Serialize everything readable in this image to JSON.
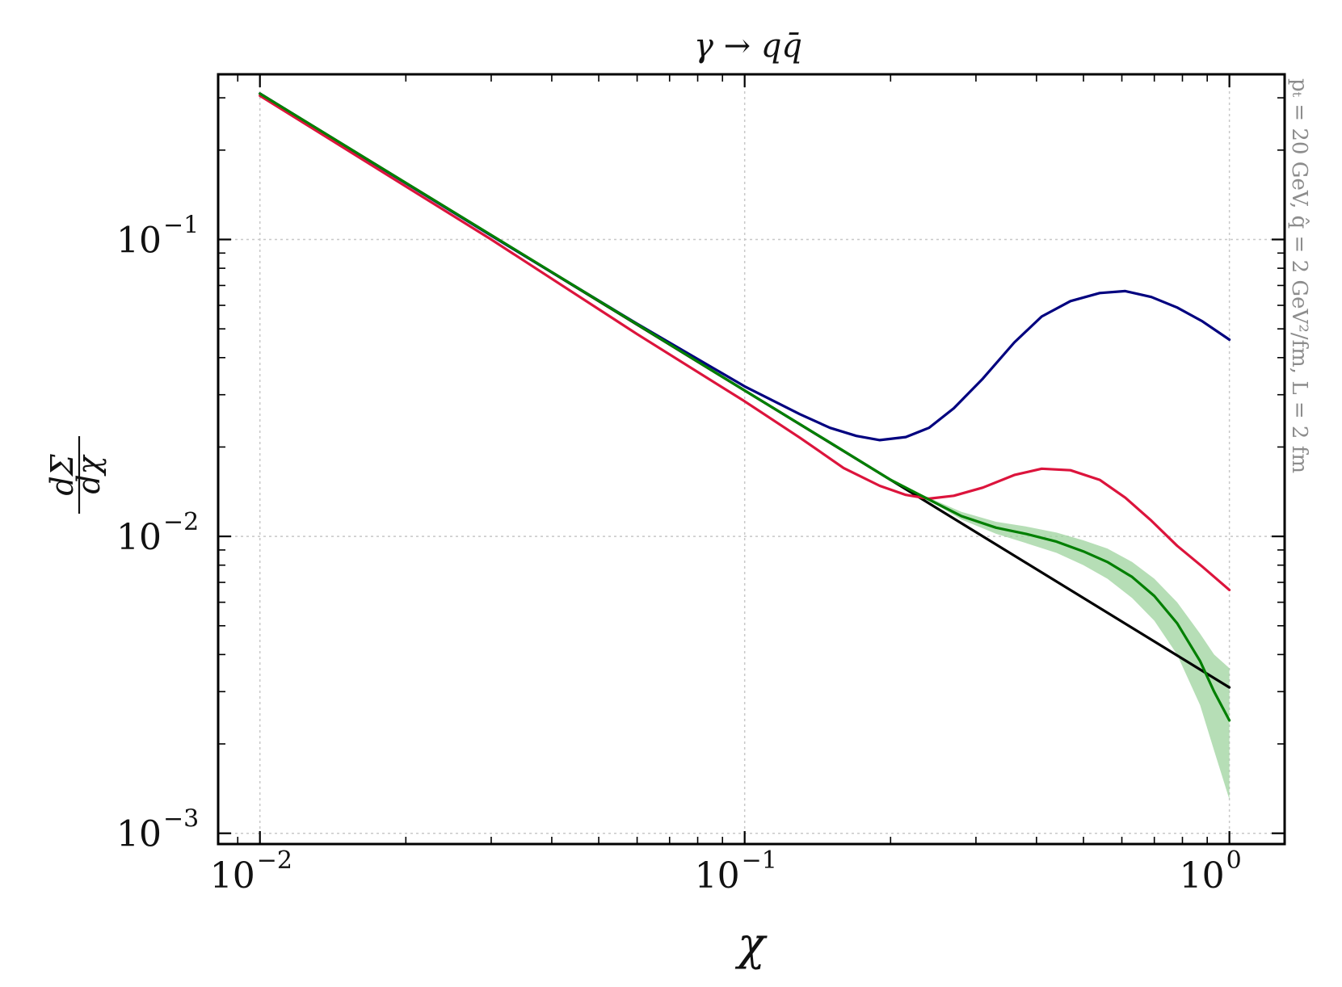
{
  "chart_data": {
    "type": "line",
    "title": "γ → qq̄",
    "xlabel": "χ",
    "ylabel_numerator": "dΣ",
    "ylabel_denominator": "dχ",
    "side_note": "pₜ = 20 GeV, q̂ = 2 GeV²/fm, L = 2 fm",
    "x_scale": "log",
    "y_scale": "log",
    "xlim": [
      0.0082,
      1.3
    ],
    "ylim": [
      0.00092,
      0.36
    ],
    "grid": true,
    "x_ticks": [
      {
        "value": 0.01,
        "base": "10",
        "exp": "−2"
      },
      {
        "value": 0.1,
        "base": "10",
        "exp": "−1"
      },
      {
        "value": 1,
        "base": "10",
        "exp": "0"
      }
    ],
    "y_ticks": [
      {
        "value": 0.001,
        "base": "10",
        "exp": "−3"
      },
      {
        "value": 0.01,
        "base": "10",
        "exp": "−2"
      },
      {
        "value": 0.1,
        "base": "10",
        "exp": "−1"
      }
    ],
    "series": [
      {
        "color": "#000000",
        "x": [
          0.01,
          0.1,
          0.2,
          1.0
        ],
        "y": [
          0.31,
          0.031,
          0.0155,
          0.0031
        ]
      },
      {
        "color": "#00007f",
        "x": [
          0.01,
          0.03,
          0.06,
          0.1,
          0.13,
          0.15,
          0.17,
          0.19,
          0.215,
          0.24,
          0.27,
          0.31,
          0.36,
          0.41,
          0.47,
          0.54,
          0.61,
          0.69,
          0.78,
          0.88,
          1.0
        ],
        "y": [
          0.31,
          0.103,
          0.052,
          0.032,
          0.0258,
          0.0232,
          0.0218,
          0.0211,
          0.0216,
          0.0232,
          0.027,
          0.034,
          0.045,
          0.055,
          0.062,
          0.066,
          0.067,
          0.064,
          0.059,
          0.053,
          0.046
        ]
      },
      {
        "color": "#dc143c",
        "x": [
          0.01,
          0.03,
          0.06,
          0.1,
          0.13,
          0.16,
          0.19,
          0.215,
          0.24,
          0.27,
          0.31,
          0.36,
          0.41,
          0.47,
          0.54,
          0.61,
          0.69,
          0.78,
          0.88,
          1.0
        ],
        "y": [
          0.305,
          0.1,
          0.048,
          0.0285,
          0.0215,
          0.017,
          0.0148,
          0.0138,
          0.0134,
          0.0137,
          0.0146,
          0.0161,
          0.0169,
          0.0167,
          0.0155,
          0.0135,
          0.0113,
          0.0093,
          0.0079,
          0.0066
        ]
      },
      {
        "color": "#007f00",
        "x": [
          0.01,
          0.03,
          0.06,
          0.1,
          0.15,
          0.2,
          0.24,
          0.28,
          0.33,
          0.38,
          0.44,
          0.5,
          0.56,
          0.63,
          0.7,
          0.78,
          0.87,
          0.93,
          1.0
        ],
        "y": [
          0.31,
          0.1035,
          0.0518,
          0.031,
          0.0207,
          0.0155,
          0.0133,
          0.0117,
          0.0107,
          0.0102,
          0.0096,
          0.0089,
          0.0082,
          0.0073,
          0.0063,
          0.0051,
          0.0038,
          0.003,
          0.0024
        ],
        "band_lower": [
          0.31,
          0.1035,
          0.0518,
          0.031,
          0.0207,
          0.0155,
          0.0132,
          0.0114,
          0.0102,
          0.0095,
          0.0088,
          0.008,
          0.0072,
          0.0062,
          0.0052,
          0.004,
          0.0027,
          0.0019,
          0.0013
        ],
        "band_upper": [
          0.31,
          0.1035,
          0.0518,
          0.031,
          0.0207,
          0.0155,
          0.0135,
          0.0121,
          0.0112,
          0.0108,
          0.0103,
          0.0097,
          0.0091,
          0.0082,
          0.0072,
          0.006,
          0.0047,
          0.004,
          0.0036
        ],
        "band_color": "#9ed39e"
      }
    ]
  }
}
